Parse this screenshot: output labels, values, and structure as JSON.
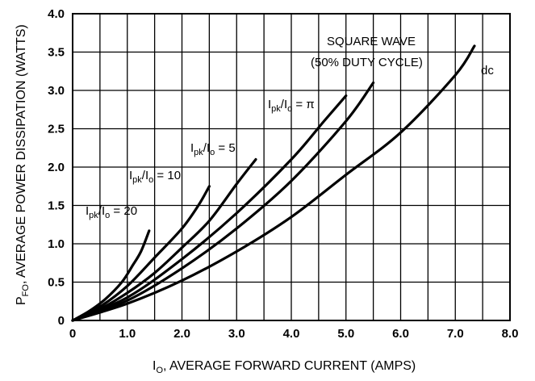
{
  "chart_data": {
    "type": "line",
    "title": "",
    "xlabel": {
      "main": "I",
      "sub": "O",
      "rest": ", AVERAGE FORWARD CURRENT (AMPS)"
    },
    "ylabel": {
      "main": "P",
      "sub": "FO",
      "rest": ", AVERAGE POWER DISSIPATION (WATTS)"
    },
    "xlim": [
      0,
      8
    ],
    "ylim": [
      0,
      4
    ],
    "x_ticks": [
      0,
      1,
      2,
      3,
      4,
      5,
      6,
      7,
      8
    ],
    "x_tick_labels": [
      "0",
      "1.0",
      "2.0",
      "3.0",
      "4.0",
      "5.0",
      "6.0",
      "7.0",
      "8.0"
    ],
    "y_ticks": [
      0,
      0.5,
      1,
      1.5,
      2,
      2.5,
      3,
      3.5,
      4
    ],
    "y_tick_labels": [
      "0",
      "0.5",
      "1.0",
      "1.5",
      "2.0",
      "2.5",
      "3.0",
      "3.5",
      "4.0"
    ],
    "grid": true,
    "series": [
      {
        "name": "Ipk/Io = 20",
        "label": {
          "pre": "I",
          "pre_sub": "pk",
          "mid": "/I",
          "mid_sub": "o",
          "post": " = 20"
        },
        "points": [
          [
            0,
            0
          ],
          [
            0.3,
            0.12
          ],
          [
            0.6,
            0.28
          ],
          [
            0.9,
            0.5
          ],
          [
            1.1,
            0.72
          ],
          [
            1.25,
            0.9
          ],
          [
            1.4,
            1.17
          ]
        ]
      },
      {
        "name": "Ipk/Io = 10",
        "label": {
          "pre": "I",
          "pre_sub": "pk",
          "mid": "/I",
          "mid_sub": "o",
          "post": " = 10"
        },
        "points": [
          [
            0,
            0
          ],
          [
            0.5,
            0.18
          ],
          [
            1.0,
            0.45
          ],
          [
            1.5,
            0.82
          ],
          [
            2.0,
            1.2
          ],
          [
            2.3,
            1.5
          ],
          [
            2.5,
            1.75
          ]
        ]
      },
      {
        "name": "Ipk/Io = 5",
        "label": {
          "pre": "I",
          "pre_sub": "pk",
          "mid": "/I",
          "mid_sub": "o",
          "post": " = 5"
        },
        "points": [
          [
            0,
            0
          ],
          [
            0.5,
            0.15
          ],
          [
            1.0,
            0.36
          ],
          [
            1.5,
            0.62
          ],
          [
            2.0,
            0.95
          ],
          [
            2.5,
            1.3
          ],
          [
            3.0,
            1.78
          ],
          [
            3.35,
            2.1
          ]
        ]
      },
      {
        "name": "Ipk/Io = π",
        "label": {
          "pre": "I",
          "pre_sub": "pk",
          "mid": "/I",
          "mid_sub": "o",
          "post": " = π"
        },
        "points": [
          [
            0,
            0
          ],
          [
            1.0,
            0.3
          ],
          [
            2.0,
            0.8
          ],
          [
            3.0,
            1.4
          ],
          [
            4.0,
            2.1
          ],
          [
            4.6,
            2.6
          ],
          [
            5.0,
            2.93
          ]
        ]
      },
      {
        "name": "SQUARE WAVE (50% DUTY CYCLE)",
        "label": {
          "line1": "SQUARE WAVE",
          "line2": "(50% DUTY CYCLE)"
        },
        "points": [
          [
            0,
            0
          ],
          [
            1.0,
            0.26
          ],
          [
            2.0,
            0.68
          ],
          [
            3.0,
            1.2
          ],
          [
            4.0,
            1.82
          ],
          [
            5.0,
            2.6
          ],
          [
            5.5,
            3.1
          ]
        ]
      },
      {
        "name": "dc",
        "label": {
          "text": "dc"
        },
        "points": [
          [
            0,
            0
          ],
          [
            1.0,
            0.22
          ],
          [
            2.0,
            0.52
          ],
          [
            3.0,
            0.9
          ],
          [
            4.0,
            1.35
          ],
          [
            5.0,
            1.9
          ],
          [
            6.0,
            2.45
          ],
          [
            7.0,
            3.2
          ],
          [
            7.35,
            3.58
          ]
        ]
      }
    ]
  }
}
